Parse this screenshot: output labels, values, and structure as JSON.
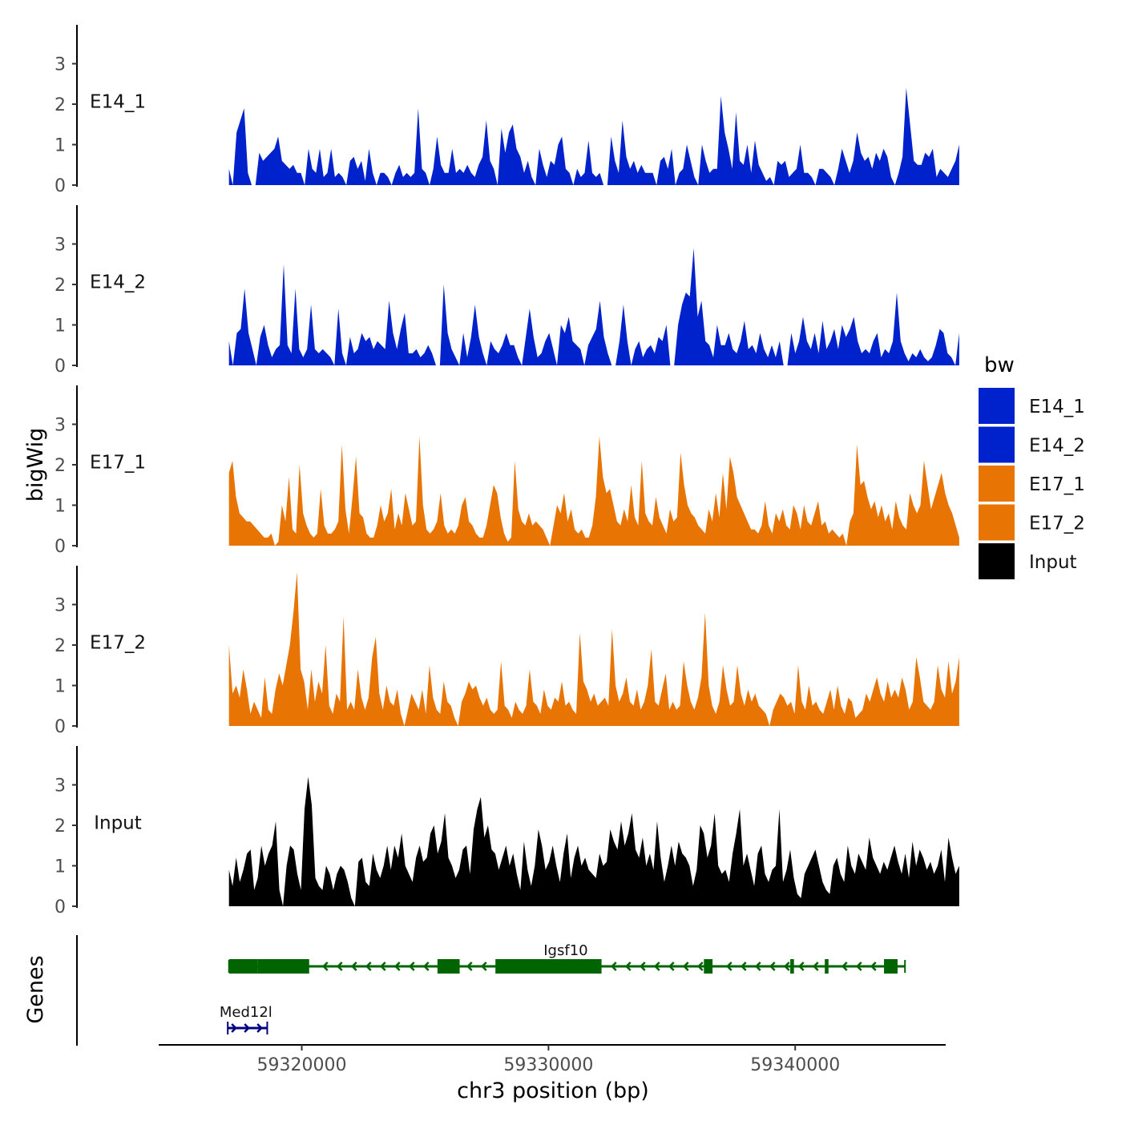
{
  "chart_data": {
    "type": "area",
    "title": "",
    "xlabel": "chr3 position (bp)",
    "ylabel": "bigWig",
    "genes_label": "Genes",
    "xlim": [
      59314200,
      59346100
    ],
    "ylim": [
      0,
      3.9
    ],
    "x_ticks": [
      59320000,
      59330000,
      59340000
    ],
    "x_tick_labels": [
      "59320000",
      "59330000",
      "59340000"
    ],
    "y_ticks": [
      0,
      1,
      2,
      3
    ],
    "y_tick_labels": [
      "0",
      "1",
      "2",
      "3"
    ],
    "legend": {
      "title": "bw",
      "position": "right",
      "items": [
        {
          "label": "E14_1",
          "color": "#0022cc"
        },
        {
          "label": "E14_2",
          "color": "#0022cc"
        },
        {
          "label": "E17_1",
          "color": "#e87404"
        },
        {
          "label": "E17_2",
          "color": "#e87404"
        },
        {
          "label": "Input",
          "color": "#000000"
        }
      ]
    },
    "track_x_range": [
      59317050,
      59346650
    ],
    "series": [
      {
        "name": "E14_1",
        "color": "#0022cc",
        "x_start": 59317050,
        "x_end": 59346650,
        "values": [
          0.4,
          0,
          1.3,
          1.6,
          1.9,
          0.3,
          0,
          0,
          0.8,
          0.6,
          0.7,
          0.8,
          0.9,
          1.2,
          0.6,
          0.5,
          0.4,
          0.5,
          0.3,
          0.3,
          0,
          0.9,
          0.4,
          0.3,
          0.9,
          0.2,
          0.3,
          0.9,
          0.2,
          0.3,
          0.2,
          0,
          0.6,
          0.7,
          0.4,
          0.6,
          0.1,
          0.9,
          0.3,
          0,
          0.3,
          0.3,
          0.2,
          0,
          0.3,
          0.5,
          0.2,
          0.3,
          0.2,
          0.3,
          1.9,
          0.4,
          0.3,
          0,
          0.4,
          1.2,
          0.5,
          0.3,
          0.3,
          0.9,
          0.3,
          0.4,
          0.3,
          0.5,
          0.3,
          0.2,
          0.5,
          0.7,
          1.6,
          0.6,
          0.4,
          0,
          1.4,
          0.8,
          1.3,
          1.5,
          0.9,
          0.7,
          0.3,
          0.6,
          0.2,
          0,
          0.9,
          0.5,
          0.2,
          0.6,
          0.5,
          1.0,
          1.2,
          0.4,
          0.3,
          0,
          0.4,
          0.2,
          0.3,
          1.1,
          0.3,
          0.2,
          0.3,
          0,
          0,
          1.2,
          0.6,
          0.3,
          1.6,
          0.7,
          0.4,
          0.6,
          0.3,
          0.5,
          0.3,
          0.3,
          0.3,
          0,
          0.6,
          0.7,
          0.4,
          0.9,
          0,
          0.3,
          0.4,
          1.0,
          0.6,
          0.2,
          0,
          1.0,
          0.6,
          0.3,
          0.4,
          0.4,
          2.2,
          1.3,
          0.9,
          0.4,
          1.8,
          0.6,
          0.5,
          1.0,
          0.3,
          1.1,
          0.5,
          0.3,
          0.1,
          0.2,
          0,
          0.6,
          0.5,
          0.6,
          0.2,
          0.3,
          0.4,
          1.0,
          0.3,
          0.3,
          0.2,
          0,
          0.4,
          0.4,
          0.3,
          0.2,
          0,
          0.4,
          0.9,
          0.6,
          0.3,
          0.6,
          1.3,
          0.8,
          0.6,
          0.7,
          0.4,
          0.8,
          0.6,
          0.9,
          0.7,
          0.2,
          0,
          0.3,
          0.7,
          2.4,
          1.5,
          0.6,
          0.5,
          0.5,
          0.8,
          0.7,
          0.9,
          0.2,
          0.4,
          0.3,
          0.2,
          0.4,
          0.6,
          1.0
        ]
      },
      {
        "name": "E14_2",
        "color": "#0022cc",
        "x_start": 59317050,
        "x_end": 59346650,
        "values": [
          0.6,
          0,
          0.8,
          0.9,
          1.9,
          0.8,
          0.4,
          0,
          0.7,
          1.0,
          0.5,
          0.2,
          0.4,
          0.5,
          2.5,
          0.5,
          0.3,
          1.9,
          0.4,
          0.2,
          0.4,
          1.5,
          0.4,
          0.3,
          0.4,
          0.3,
          0.2,
          0,
          1.4,
          0.3,
          0,
          0.7,
          0.3,
          0.4,
          0.8,
          0.6,
          0.7,
          0.4,
          0.6,
          0.5,
          0.4,
          1.6,
          0.8,
          0.4,
          0.9,
          1.3,
          0.3,
          0.3,
          0.4,
          0.2,
          0.3,
          0.5,
          0.3,
          0,
          0,
          2.0,
          0.8,
          0.4,
          0.2,
          0,
          0.8,
          0.2,
          0.7,
          1.5,
          0.7,
          0.3,
          0,
          0.6,
          0.4,
          0.3,
          0.5,
          0.8,
          0.5,
          0.5,
          0.2,
          0,
          0.7,
          1.4,
          0.7,
          0.2,
          0.3,
          0.6,
          0.8,
          0.4,
          0,
          1.0,
          0.8,
          1.2,
          0.6,
          0.5,
          0.4,
          0,
          0.5,
          0.7,
          0.9,
          1.6,
          0.7,
          0.3,
          0,
          0,
          0.6,
          1.5,
          0.6,
          0,
          0.4,
          0.6,
          0.2,
          0.4,
          0.5,
          0.3,
          0.7,
          0.6,
          1.0,
          0,
          0,
          1.0,
          1.5,
          1.8,
          1.7,
          2.9,
          1.2,
          1.6,
          0.6,
          0.5,
          0.2,
          1.0,
          0.5,
          0.5,
          0.8,
          0.4,
          0.3,
          0.6,
          1.1,
          0.4,
          0.5,
          0.3,
          0.8,
          0.4,
          0.2,
          0.5,
          0.2,
          0.6,
          0,
          0,
          0.8,
          0.3,
          0.6,
          1.2,
          0.6,
          0.4,
          0.8,
          0.3,
          1.1,
          0.4,
          0.6,
          0.9,
          0.4,
          1.0,
          0.7,
          0.9,
          1.2,
          0.6,
          0.3,
          0.4,
          0.3,
          0.6,
          0.8,
          0.2,
          0.4,
          0.3,
          0.6,
          1.8,
          0.6,
          0.3,
          0.1,
          0.3,
          0.2,
          0.4,
          0.2,
          0.1,
          0.2,
          0.5,
          0.9,
          0.8,
          0.3,
          0.2,
          0,
          0.8
        ]
      },
      {
        "name": "E17_1",
        "color": "#e87404",
        "x_start": 59317050,
        "x_end": 59346650,
        "values": [
          1.8,
          2.1,
          1.2,
          0.8,
          0.7,
          0.6,
          0.6,
          0.5,
          0.4,
          0.3,
          0.2,
          0.2,
          0.3,
          0,
          0.1,
          1.0,
          0.6,
          1.7,
          0.4,
          0.3,
          2.0,
          0.8,
          0.5,
          0.3,
          0.2,
          0.3,
          1.4,
          0.5,
          0.3,
          0.3,
          0.4,
          0.6,
          2.5,
          0.9,
          0.3,
          1.2,
          2.2,
          0.8,
          0.7,
          0.3,
          0.2,
          0.2,
          0.5,
          1.0,
          0.6,
          0.8,
          1.4,
          0.4,
          0.8,
          0.5,
          1.3,
          0.9,
          0.5,
          0.6,
          2.7,
          1.0,
          0.4,
          0.3,
          0.4,
          0.6,
          1.3,
          0.5,
          0.3,
          0.4,
          0.3,
          0.5,
          1.0,
          1.2,
          0.6,
          0.5,
          0.3,
          0.2,
          0.2,
          0.5,
          1.0,
          1.5,
          1.3,
          0.7,
          0.3,
          0.1,
          0.2,
          2.1,
          0.9,
          0.6,
          0.5,
          0.8,
          0.5,
          0.6,
          0.5,
          0.4,
          0.2,
          0,
          0.5,
          1.0,
          0.8,
          1.3,
          0.6,
          0.9,
          0.4,
          0.3,
          0.4,
          0.2,
          0.2,
          0.5,
          1.2,
          2.7,
          1.7,
          1.3,
          1.4,
          1.0,
          0.6,
          0.5,
          0.9,
          0.6,
          1.5,
          0.7,
          0.5,
          2.1,
          0.8,
          0.6,
          0.5,
          1.2,
          0.7,
          0.5,
          0.3,
          0.9,
          0.6,
          0.7,
          2.3,
          1.5,
          1.0,
          0.8,
          0.7,
          0.5,
          0.4,
          0.3,
          0.9,
          0.6,
          1.3,
          0.7,
          1.8,
          0.9,
          2.2,
          1.8,
          1.2,
          1.0,
          0.8,
          0.6,
          0.4,
          0.4,
          0.3,
          0.5,
          1.1,
          0.5,
          0.3,
          0.8,
          0.6,
          0.9,
          0.5,
          0.4,
          1.0,
          0.8,
          0.4,
          1.0,
          0.6,
          0.5,
          0.8,
          1.1,
          0.5,
          0.6,
          0.3,
          0.4,
          0.3,
          0.2,
          0.3,
          0,
          0.6,
          0.8,
          2.5,
          1.5,
          1.6,
          1.2,
          0.9,
          1.1,
          0.7,
          1.0,
          0.6,
          0.8,
          0.4,
          1.1,
          0.7,
          0.5,
          0.4,
          1.3,
          1.0,
          0.8,
          1.0,
          2.1,
          1.5,
          0.9,
          1.2,
          1.5,
          1.8,
          1.3,
          1.0,
          0.8,
          0.5,
          0.2
        ]
      },
      {
        "name": "E17_2",
        "color": "#e87404",
        "x_start": 59317050,
        "x_end": 59346650,
        "values": [
          2.0,
          0.8,
          1.0,
          0.7,
          1.4,
          0.9,
          0.3,
          0.6,
          0.4,
          0.2,
          1.2,
          0.4,
          0.3,
          0.9,
          1.3,
          1.0,
          1.5,
          2.0,
          2.8,
          3.8,
          1.4,
          1.1,
          0.4,
          1.4,
          0.6,
          1.1,
          0.8,
          2.0,
          0.5,
          0.3,
          0.8,
          0.6,
          2.7,
          0.4,
          0.6,
          0.4,
          1.4,
          0.7,
          0.4,
          0.7,
          1.7,
          2.2,
          0.8,
          0.4,
          1.0,
          0.6,
          0.5,
          0.9,
          0.3,
          0,
          0.4,
          0.8,
          0.6,
          0.4,
          0.9,
          0.3,
          1.5,
          0.7,
          0.4,
          0.3,
          1.1,
          0.6,
          0.5,
          0.2,
          0,
          0.6,
          0.8,
          1.1,
          0.9,
          1.0,
          0.7,
          0.5,
          0.7,
          0.4,
          0.3,
          0.4,
          1.6,
          0.5,
          0.4,
          0.2,
          0.6,
          0.4,
          0.3,
          0.5,
          1.4,
          0.6,
          0.5,
          0.3,
          0.9,
          0.5,
          0.4,
          0.7,
          0.6,
          1.1,
          0.5,
          0.6,
          0.4,
          0.3,
          2.3,
          1.1,
          0.9,
          0.6,
          0.8,
          0.5,
          0.6,
          0.7,
          0.5,
          2.4,
          1.0,
          0.6,
          0.8,
          1.2,
          0.6,
          0.5,
          0.9,
          0.4,
          0.6,
          1.0,
          1.9,
          0.6,
          0.5,
          0.9,
          1.3,
          0.4,
          0.6,
          0.4,
          0.5,
          1.6,
          1.0,
          0.6,
          0.4,
          0.7,
          1.2,
          2.8,
          1.0,
          0.5,
          0.3,
          0.6,
          1.5,
          0.9,
          0.5,
          0.6,
          1.5,
          0.8,
          0.5,
          0.9,
          0.6,
          0.8,
          0.5,
          0.4,
          0.3,
          0,
          0.4,
          0.6,
          0.8,
          0.7,
          0.5,
          0.6,
          0.3,
          1.5,
          0.6,
          0.4,
          1.0,
          0.5,
          0.6,
          0.4,
          0.3,
          0.6,
          0.9,
          0.4,
          1.0,
          0.5,
          0.3,
          0.7,
          0.6,
          0.2,
          0.3,
          0.4,
          0.8,
          0.6,
          0.9,
          1.2,
          0.8,
          0.6,
          1.1,
          0.7,
          0.9,
          0.7,
          1.2,
          0.9,
          0.4,
          0.6,
          1.7,
          1.2,
          0.6,
          0.5,
          0.4,
          0.6,
          1.5,
          0.9,
          0.7,
          1.6,
          0.8,
          1.1,
          1.7
        ]
      },
      {
        "name": "Input",
        "color": "#000000",
        "x_start": 59317050,
        "x_end": 59346650,
        "values": [
          0.9,
          0.5,
          1.2,
          0.6,
          0.9,
          1.3,
          1.4,
          0.4,
          0.7,
          1.5,
          1.0,
          1.3,
          1.5,
          2.1,
          0.4,
          0,
          1.0,
          1.5,
          1.4,
          0.8,
          0.4,
          2.4,
          3.2,
          2.5,
          0.7,
          0.5,
          0.4,
          1.0,
          0.8,
          0.4,
          0.8,
          1.0,
          0.9,
          0.6,
          0.2,
          0,
          1.1,
          1.2,
          0.6,
          0.5,
          1.3,
          0.9,
          0.7,
          1.0,
          1.5,
          0.9,
          1.5,
          1.2,
          1.8,
          1.0,
          0.8,
          0.6,
          1.2,
          1.5,
          1.1,
          1.2,
          1.8,
          2.0,
          1.3,
          1.6,
          2.3,
          1.2,
          1.0,
          0.7,
          0.9,
          1.4,
          1.5,
          0.8,
          1.9,
          2.4,
          2.7,
          1.7,
          2.0,
          1.4,
          1.3,
          0.9,
          1.2,
          1.5,
          1.0,
          1.3,
          0.8,
          0.4,
          1.6,
          0.9,
          0.5,
          1.0,
          1.9,
          1.5,
          0.9,
          1.1,
          1.5,
          1.0,
          0.6,
          1.3,
          1.8,
          0.7,
          1.2,
          1.5,
          1.0,
          1.2,
          0.9,
          0.8,
          0.7,
          1.3,
          1.0,
          1.1,
          1.9,
          1.6,
          1.4,
          2.1,
          1.5,
          1.8,
          2.3,
          1.4,
          1.2,
          1.7,
          1.0,
          1.3,
          0.9,
          2.1,
          1.2,
          0.6,
          1.0,
          1.5,
          1.0,
          1.6,
          1.3,
          1.2,
          1.0,
          0.5,
          0.9,
          2.0,
          1.8,
          1.2,
          1.5,
          2.3,
          1.0,
          0.8,
          0.9,
          0.6,
          1.3,
          1.8,
          2.4,
          1.0,
          1.3,
          0.9,
          0.5,
          1.3,
          1.5,
          0.8,
          0.6,
          0.9,
          1.0,
          2.4,
          0.6,
          0.9,
          1.4,
          0.7,
          0.3,
          0.2,
          0.8,
          1.0,
          1.2,
          1.4,
          1.0,
          0.6,
          0.4,
          0.3,
          1.0,
          1.2,
          0.8,
          0.6,
          1.5,
          1.0,
          0.8,
          1.3,
          1.1,
          0.9,
          1.7,
          1.2,
          1.0,
          0.8,
          1.1,
          0.9,
          1.2,
          1.5,
          1.1,
          0.8,
          1.3,
          0.7,
          1.6,
          1.0,
          1.4,
          1.2,
          0.9,
          1.1,
          0.8,
          1.0,
          1.4,
          0.6,
          1.7,
          1.2,
          0.8,
          1.0
        ]
      }
    ],
    "genes": [
      {
        "name": "Igsf10",
        "strand": "-",
        "start": 59317050,
        "end": 59344450,
        "color": "#006400",
        "exons": [
          [
            59317050,
            59318200
          ],
          [
            59318200,
            59320300
          ],
          [
            59325500,
            59326400
          ],
          [
            59327850,
            59332150
          ],
          [
            59336300,
            59336650
          ],
          [
            59339800,
            59339950
          ],
          [
            59341200,
            59341350
          ],
          [
            59343600,
            59344150
          ]
        ]
      },
      {
        "name": "Med12l",
        "strand": "+",
        "start": 59317000,
        "end": 59318600,
        "color": "#000080",
        "exons": []
      }
    ]
  }
}
